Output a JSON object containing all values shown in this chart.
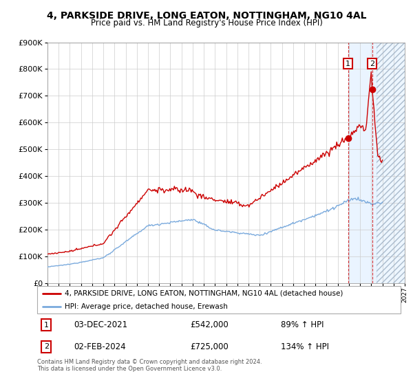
{
  "title": "4, PARKSIDE DRIVE, LONG EATON, NOTTINGHAM, NG10 4AL",
  "subtitle": "Price paid vs. HM Land Registry's House Price Index (HPI)",
  "legend_line1": "4, PARKSIDE DRIVE, LONG EATON, NOTTINGHAM, NG10 4AL (detached house)",
  "legend_line2": "HPI: Average price, detached house, Erewash",
  "annotation1_date": "03-DEC-2021",
  "annotation1_price": "£542,000",
  "annotation1_hpi": "89% ↑ HPI",
  "annotation2_date": "02-FEB-2024",
  "annotation2_price": "£725,000",
  "annotation2_hpi": "134% ↑ HPI",
  "footer": "Contains HM Land Registry data © Crown copyright and database right 2024.\nThis data is licensed under the Open Government Licence v3.0.",
  "hpi_color": "#7aaadd",
  "price_color": "#cc0000",
  "background_color": "#ffffff",
  "grid_color": "#cccccc",
  "ylim": [
    0,
    900000
  ],
  "yticks": [
    0,
    100000,
    200000,
    300000,
    400000,
    500000,
    600000,
    700000,
    800000,
    900000
  ],
  "sale1_year": 2021.917,
  "sale2_year": 2024.083,
  "sale1_price": 542000,
  "sale2_price": 725000,
  "xmin": 1995,
  "xmax": 2027,
  "data_end_year": 2024.5,
  "future_start_year": 2024.5,
  "shade_start_year": 2021.917,
  "shade_end_year": 2024.083,
  "hatch_start_year": 2024.083,
  "hatch_end_year": 2027
}
